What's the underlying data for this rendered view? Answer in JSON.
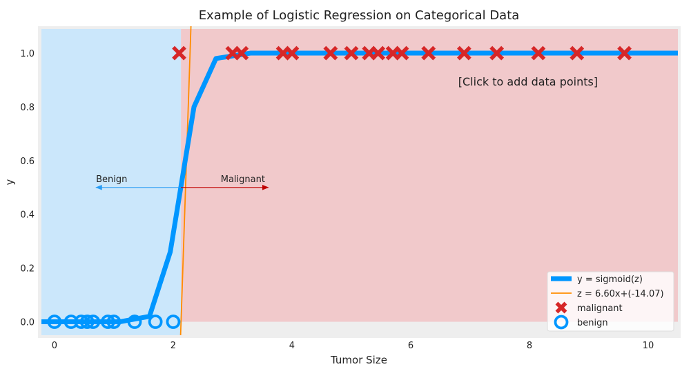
{
  "chart_data": {
    "type": "scatter",
    "title": "Example of Logistic Regression on Categorical Data",
    "xlabel": "Tumor Size",
    "ylabel": "y",
    "xlim": [
      -0.22,
      10.5
    ],
    "ylim": [
      -0.05,
      1.09
    ],
    "x_ticks": [
      0,
      2,
      4,
      6,
      8,
      10
    ],
    "y_ticks": [
      0.0,
      0.2,
      0.4,
      0.6,
      0.8,
      1.0
    ],
    "x_tick_labels": [
      "0",
      "2",
      "4",
      "6",
      "8",
      "10"
    ],
    "y_tick_labels": [
      "0.0",
      "0.2",
      "0.4",
      "0.6",
      "0.8",
      "1.0"
    ],
    "grid": false,
    "legend_position": "lower-right",
    "series": [
      {
        "name": "y = sigmoid(z)",
        "kind": "line",
        "color": "#0096ff",
        "x": [
          -0.22,
          0.2,
          0.65,
          1.1,
          1.6,
          1.95,
          2.15,
          2.35,
          2.72,
          3.3,
          4.0,
          5.0,
          7.0,
          10.5
        ],
        "y": [
          0.0,
          0.0,
          0.0,
          0.0,
          0.02,
          0.26,
          0.53,
          0.8,
          0.98,
          1.0,
          1.0,
          1.0,
          1.0,
          1.0
        ]
      },
      {
        "name": "z = 6.60x+(-14.07)",
        "kind": "line",
        "color": "#ff8c00",
        "slope": 6.6,
        "intercept": -14.07
      },
      {
        "name": "malignant",
        "kind": "scatter",
        "marker": "x",
        "color": "#d62728",
        "x": [
          2.1,
          3.0,
          3.15,
          3.85,
          4.0,
          4.65,
          5.0,
          5.3,
          5.45,
          5.7,
          5.85,
          6.3,
          6.9,
          7.45,
          8.15,
          8.8,
          9.6
        ],
        "y": [
          1,
          1,
          1,
          1,
          1,
          1,
          1,
          1,
          1,
          1,
          1,
          1,
          1,
          1,
          1,
          1,
          1
        ]
      },
      {
        "name": "benign",
        "kind": "scatter",
        "marker": "o",
        "color": "#0096ff",
        "x": [
          0.0,
          0.28,
          0.45,
          0.55,
          0.65,
          0.9,
          1.0,
          1.35,
          1.7,
          2.0
        ],
        "y": [
          0,
          0,
          0,
          0,
          0,
          0,
          0,
          0,
          0,
          0
        ]
      }
    ],
    "regions": [
      {
        "label": "benign",
        "x_from": -0.22,
        "x_to": 2.13,
        "color": "#cbe7fb"
      },
      {
        "label": "malignant",
        "x_from": 2.13,
        "x_to": 10.5,
        "color": "#f1c9cb"
      }
    ],
    "annotations": {
      "benign_label": "Benign",
      "malignant_label": "Malignant",
      "arrow_y": 0.5,
      "benign_arrow": [
        2.13,
        0.7
      ],
      "malignant_arrow": [
        2.13,
        3.6
      ],
      "benign_color": "#2a9df4",
      "malignant_color": "#c00000",
      "click_note": "[Click to add data points]"
    }
  }
}
